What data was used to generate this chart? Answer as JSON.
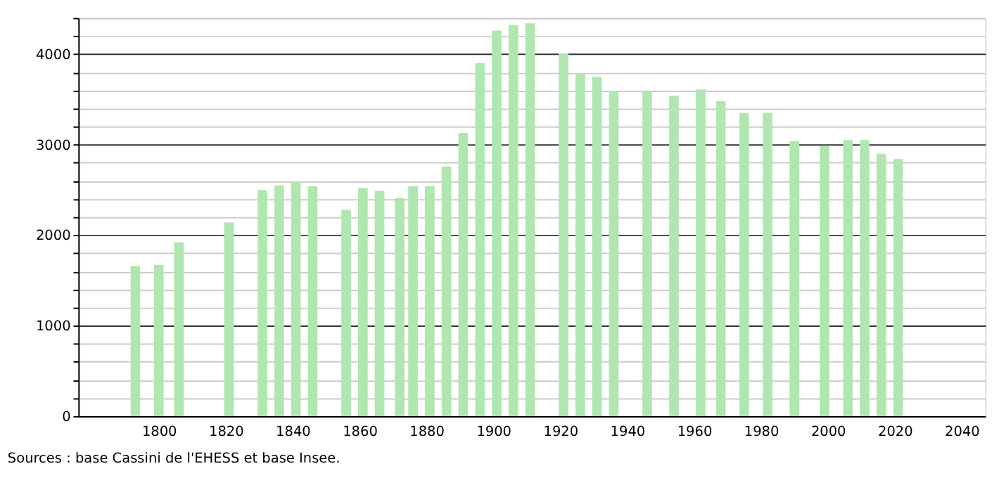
{
  "chart_data": {
    "type": "bar",
    "color": "#b0e6b0",
    "x": [
      1793,
      1800,
      1806,
      1821,
      1831,
      1836,
      1841,
      1846,
      1856,
      1861,
      1866,
      1872,
      1876,
      1881,
      1886,
      1891,
      1896,
      1901,
      1906,
      1911,
      1921,
      1926,
      1931,
      1936,
      1946,
      1954,
      1962,
      1968,
      1975,
      1982,
      1990,
      1999,
      2006,
      2011,
      2016,
      2021
    ],
    "values": [
      1660,
      1670,
      1920,
      2140,
      2500,
      2550,
      2590,
      2540,
      2280,
      2520,
      2490,
      2410,
      2540,
      2540,
      2760,
      3130,
      3900,
      4260,
      4320,
      4340,
      4010,
      3780,
      3750,
      3590,
      3590,
      3540,
      3610,
      3480,
      3350,
      3350,
      3040,
      2990,
      3050,
      3050,
      2900,
      2840
    ],
    "xlim": [
      1778,
      2045
    ],
    "xticks": [
      1800,
      1820,
      1840,
      1860,
      1880,
      1900,
      1920,
      1940,
      1960,
      1980,
      2000,
      2020,
      2040
    ],
    "ylim": [
      0,
      4400
    ],
    "yticks": [
      0,
      {
        "value": 200,
        "label": null
      },
      {
        "value": 400,
        "label": null
      },
      {
        "value": 600,
        "label": null
      },
      {
        "value": 800,
        "label": null
      },
      1000,
      {
        "value": 1200,
        "label": null
      },
      {
        "value": 1400,
        "label": null
      },
      {
        "value": 1600,
        "label": null
      },
      {
        "value": 1800,
        "label": null
      },
      2000,
      {
        "value": 2200,
        "label": null
      },
      {
        "value": 2400,
        "label": null
      },
      {
        "value": 2600,
        "label": null
      },
      {
        "value": 2800,
        "label": null
      },
      3000,
      {
        "value": 3200,
        "label": null
      },
      {
        "value": 3400,
        "label": null
      },
      {
        "value": 3600,
        "label": null
      },
      {
        "value": 3800,
        "label": null
      },
      4000,
      {
        "value": 4200,
        "label": null
      },
      {
        "value": 4400,
        "label": null
      }
    ],
    "grid": "y",
    "annotations": [
      "Sources : base Cassini de l'EHESS et base Insee."
    ]
  }
}
